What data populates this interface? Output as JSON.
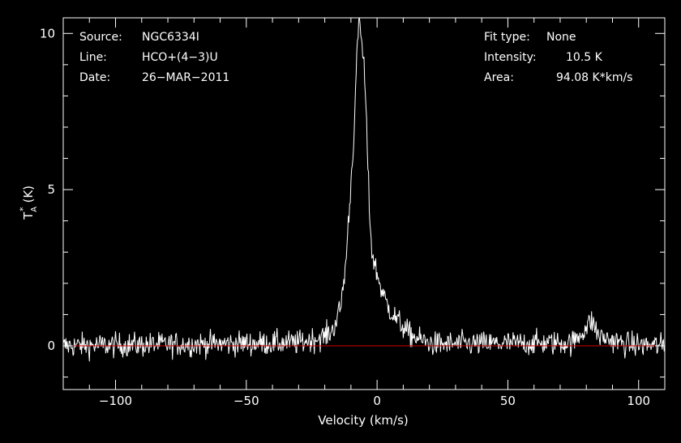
{
  "chart_data": {
    "type": "line",
    "xlabel": "Velocity (km/s)",
    "ylabel_main": "T",
    "ylabel_sub": "A",
    "ylabel_sup": "*",
    "ylabel_unit": "(K)",
    "xlim": [
      -120,
      110
    ],
    "ylim": [
      -1.4,
      10.5
    ],
    "x_ticks": [
      -100,
      -50,
      0,
      50,
      100
    ],
    "x_tick_labels": [
      "−100",
      "−50",
      "0",
      "50",
      "100"
    ],
    "y_ticks": [
      0,
      5,
      10
    ],
    "y_tick_labels": [
      "0",
      "5",
      "10"
    ],
    "baseline": 0,
    "colors": {
      "background": "#000000",
      "frame": "#ffffff",
      "spectrum": "#ffffff",
      "baseline": "#cc0000"
    },
    "info_left": [
      {
        "label": "Source:",
        "value": "NGC6334I"
      },
      {
        "label": "Line:",
        "value": "HCO+(4−3)U"
      },
      {
        "label": "Date:",
        "value": "26−MAR−2011"
      }
    ],
    "info_right": [
      {
        "label": "Fit type:",
        "value": "None"
      },
      {
        "label": "Intensity:",
        "value": "10.5 K"
      },
      {
        "label": "Area:",
        "value": "94.08 K*km/s"
      }
    ],
    "series": [
      {
        "points": [
          [
            -120,
            0.0
          ],
          [
            -30,
            0.1
          ],
          [
            -20,
            0.3
          ],
          [
            -17,
            0.5
          ],
          [
            -14,
            1.2
          ],
          [
            -12,
            2.6
          ],
          [
            -10,
            5.2
          ],
          [
            -9,
            6.6
          ],
          [
            -8,
            8.6
          ],
          [
            -7,
            10.5
          ],
          [
            -6,
            9.8
          ],
          [
            -5,
            9.0
          ],
          [
            -4,
            7.0
          ],
          [
            -3,
            4.5
          ],
          [
            -2,
            3.0
          ],
          [
            0,
            2.3
          ],
          [
            2,
            1.7
          ],
          [
            4,
            1.3
          ],
          [
            6,
            1.0
          ],
          [
            8,
            0.8
          ],
          [
            10,
            0.6
          ],
          [
            12,
            0.4
          ],
          [
            16,
            0.2
          ],
          [
            22,
            0.05
          ],
          [
            75,
            0.1
          ],
          [
            80,
            0.6
          ],
          [
            82,
            0.8
          ],
          [
            85,
            0.3
          ],
          [
            95,
            0.05
          ],
          [
            110,
            0.0
          ]
        ],
        "noise_rms": 0.2
      }
    ]
  }
}
